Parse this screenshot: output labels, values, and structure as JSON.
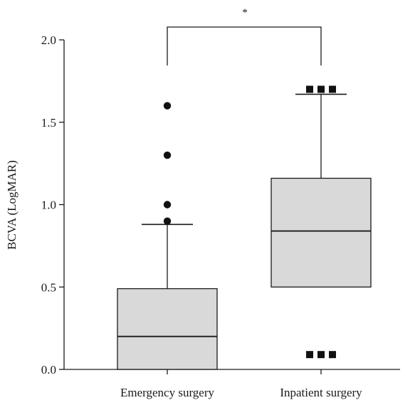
{
  "chart_data": {
    "type": "box",
    "title": "",
    "xlabel": "",
    "ylabel": "BCVA (LogMAR)",
    "ylim": [
      0,
      2.0
    ],
    "yticks": [
      0.0,
      0.5,
      1.0,
      1.5,
      2.0
    ],
    "ytick_labels": [
      "0.0",
      "0.5",
      "1.0",
      "1.5",
      "2.0"
    ],
    "grid": false,
    "categories": [
      "Emergency surgery",
      "Inpatient surgery"
    ],
    "boxes": [
      {
        "name": "Emergency surgery",
        "whisker_low": 0.0,
        "q1": 0.0,
        "median": 0.2,
        "q3": 0.49,
        "whisker_high": 0.88,
        "outlier_marker": "circle",
        "outliers": [
          0.9,
          1.0,
          1.3,
          1.6
        ]
      },
      {
        "name": "Inpatient surgery",
        "whisker_low": 0.5,
        "q1": 0.5,
        "median": 0.84,
        "q3": 1.16,
        "whisker_high": 1.67,
        "outlier_marker": "square",
        "outlier_groups": [
          {
            "value": 1.7,
            "count": 3
          },
          {
            "value": 0.09,
            "count": 3
          }
        ]
      }
    ],
    "significance": {
      "between": [
        0,
        1
      ],
      "label": "*"
    },
    "colors": {
      "box_fill": "#d9d9d9",
      "stroke": "#1a1a1a",
      "marker": "#111111"
    }
  }
}
